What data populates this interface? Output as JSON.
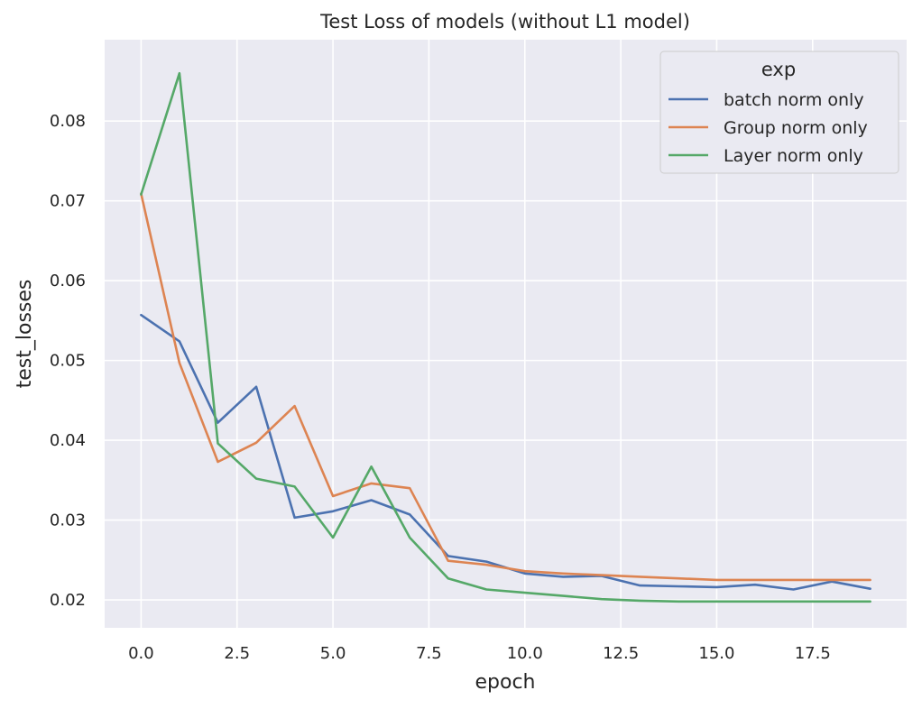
{
  "chart_data": {
    "type": "line",
    "title": "Test Loss of models (without L1 model)",
    "xlabel": "epoch",
    "ylabel": "test_losses",
    "xlim": [
      -0.95,
      19.95
    ],
    "ylim": [
      0.0165,
      0.0902
    ],
    "xticks": [
      0.0,
      2.5,
      5.0,
      7.5,
      10.0,
      12.5,
      15.0,
      17.5
    ],
    "xtick_labels": [
      "0.0",
      "2.5",
      "5.0",
      "7.5",
      "10.0",
      "12.5",
      "15.0",
      "17.5"
    ],
    "yticks": [
      0.02,
      0.03,
      0.04,
      0.05,
      0.06,
      0.07,
      0.08
    ],
    "ytick_labels": [
      "0.02",
      "0.03",
      "0.04",
      "0.05",
      "0.06",
      "0.07",
      "0.08"
    ],
    "grid": true,
    "legend": {
      "title": "exp",
      "position": "top-right"
    },
    "x": [
      0,
      1,
      2,
      3,
      4,
      5,
      6,
      7,
      8,
      9,
      10,
      11,
      12,
      13,
      14,
      15,
      16,
      17,
      18,
      19
    ],
    "series": [
      {
        "name": "batch norm only",
        "color": "#4c72b0",
        "values": [
          0.0557,
          0.0524,
          0.0422,
          0.0467,
          0.0303,
          0.0311,
          0.0325,
          0.0307,
          0.0255,
          0.0248,
          0.0233,
          0.0229,
          0.023,
          0.0218,
          0.0217,
          0.0216,
          0.0219,
          0.0213,
          0.0223,
          0.0214
        ]
      },
      {
        "name": "Group norm only",
        "color": "#dd8452",
        "values": [
          0.0709,
          0.0497,
          0.0373,
          0.0397,
          0.0443,
          0.033,
          0.0346,
          0.034,
          0.0249,
          0.0244,
          0.0236,
          0.0233,
          0.0231,
          0.0229,
          0.0227,
          0.0225,
          0.0225,
          0.0225,
          0.0225,
          0.0225
        ]
      },
      {
        "name": "Layer norm only",
        "color": "#55a868",
        "values": [
          0.0708,
          0.086,
          0.0396,
          0.0352,
          0.0342,
          0.0278,
          0.0367,
          0.0278,
          0.0227,
          0.0213,
          0.0209,
          0.0205,
          0.0201,
          0.0199,
          0.0198,
          0.0198,
          0.0198,
          0.0198,
          0.0198,
          0.0198
        ]
      }
    ],
    "colors": {
      "plot_background": "#eaeaf2",
      "grid": "#ffffff",
      "text": "#262626"
    }
  }
}
